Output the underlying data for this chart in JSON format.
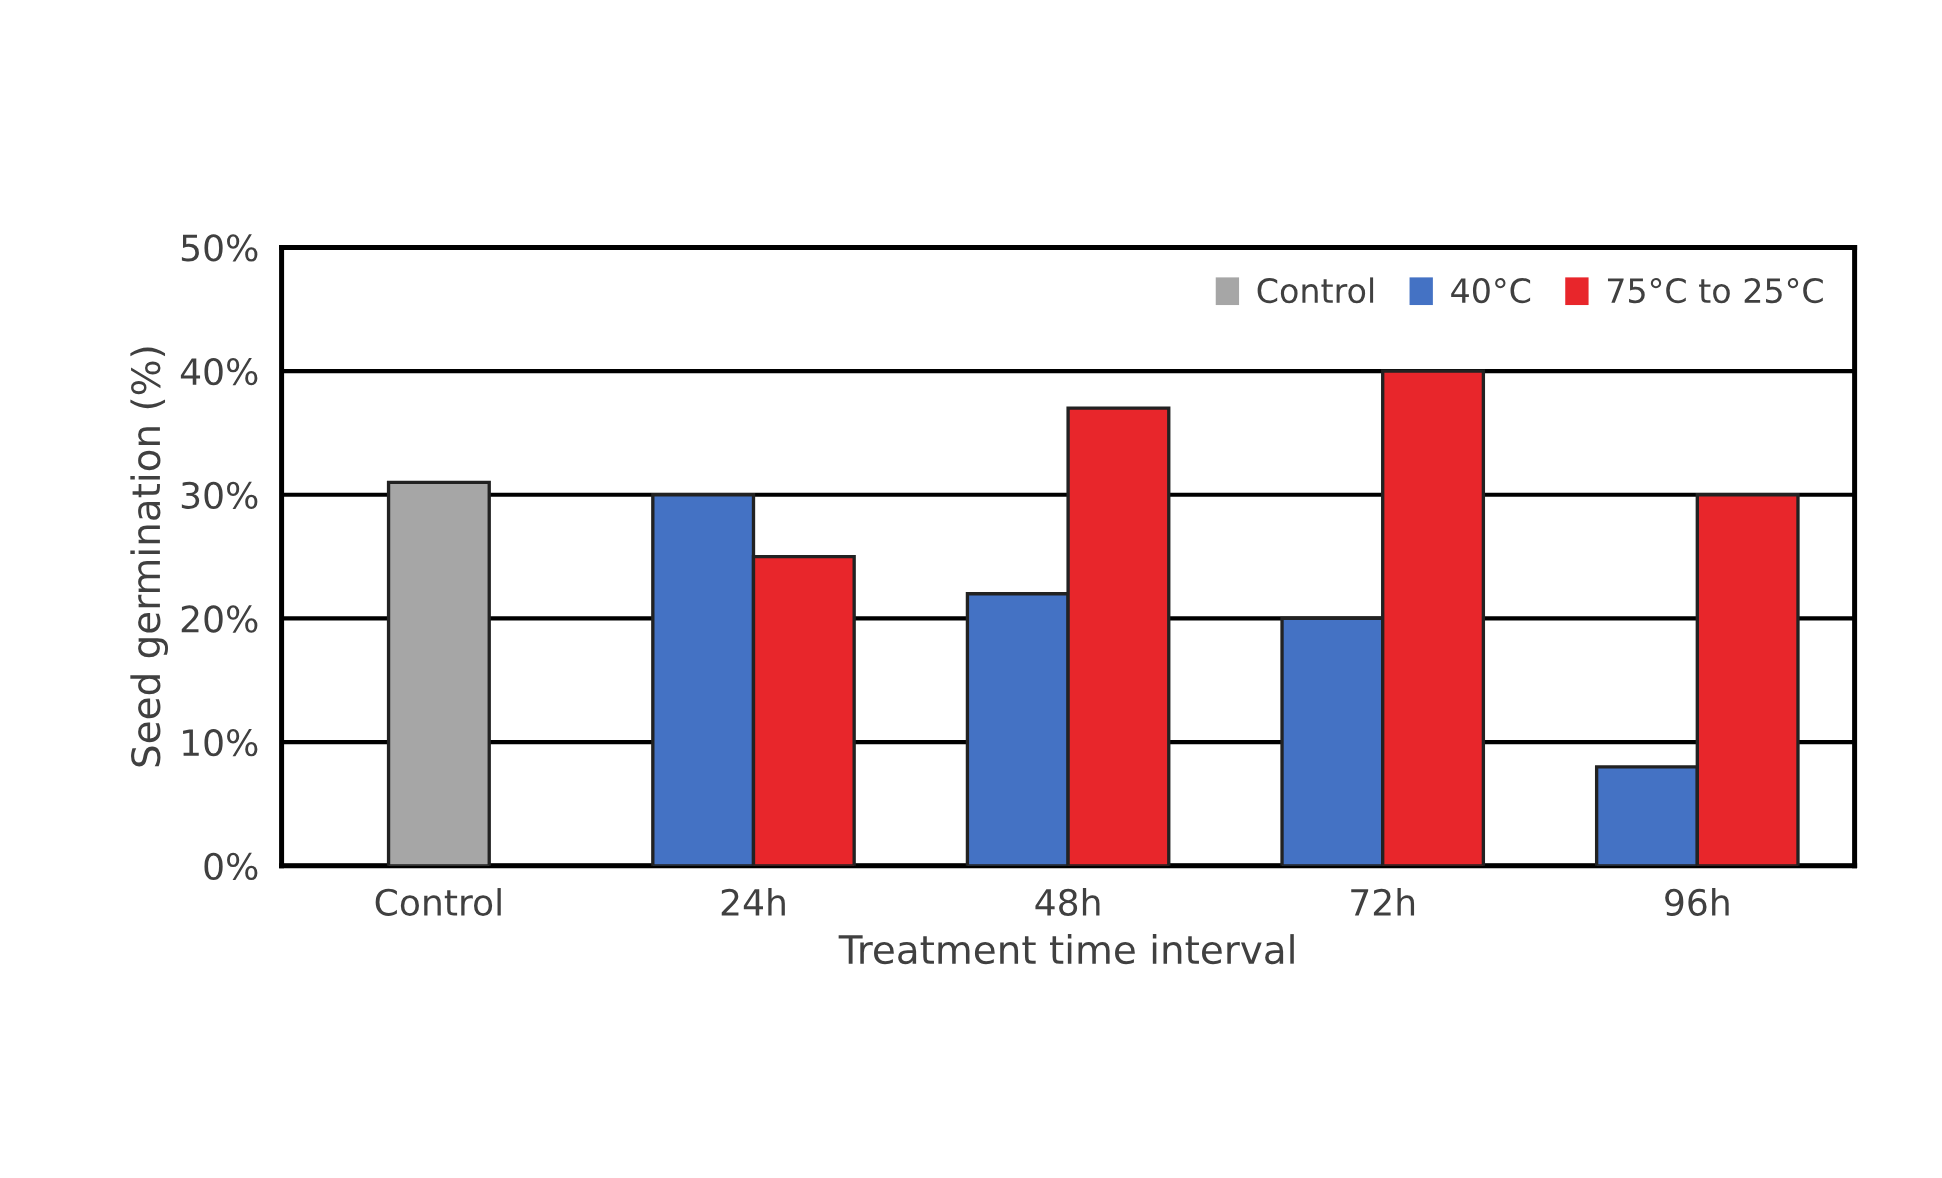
{
  "chart_data": {
    "type": "bar",
    "xlabel": "Treatment time interval",
    "ylabel": "Seed germination (%)",
    "categories": [
      "Control",
      "24h",
      "48h",
      "72h",
      "96h"
    ],
    "series": [
      {
        "name": "Control",
        "color": "#a6a6a6",
        "values": [
          31,
          null,
          null,
          null,
          null
        ]
      },
      {
        "name": "40°C",
        "color": "#4472c4",
        "values": [
          null,
          30,
          22,
          20,
          8
        ]
      },
      {
        "name": "75°C to 25°C",
        "color": "#e8262b",
        "values": [
          null,
          25,
          37,
          40,
          30
        ]
      }
    ],
    "ylim": [
      0,
      50
    ],
    "yticks": [
      {
        "value": 0,
        "label": "0%"
      },
      {
        "value": 10,
        "label": "10%"
      },
      {
        "value": 20,
        "label": "20%"
      },
      {
        "value": 30,
        "label": "30%"
      },
      {
        "value": 40,
        "label": "40%"
      },
      {
        "value": 50,
        "label": "50%"
      }
    ],
    "grid": "y",
    "legend": "top right"
  }
}
